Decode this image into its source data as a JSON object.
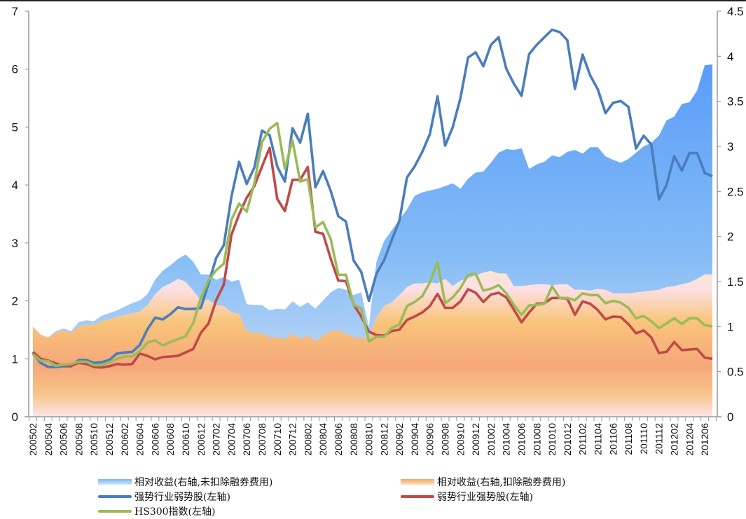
{
  "chart_data": {
    "type": "line",
    "title": "",
    "xlabel": "",
    "ylabel_left": "",
    "ylabel_right": "",
    "left_axis": {
      "range": [
        0,
        7
      ],
      "ticks": [
        "0",
        "1",
        "2",
        "3",
        "4",
        "5",
        "6",
        "7"
      ]
    },
    "right_axis": {
      "range": [
        0,
        4.5
      ],
      "ticks": [
        "0",
        "0.5",
        "1",
        "1.5",
        "2",
        "2.5",
        "3",
        "3.5",
        "4",
        "4.5"
      ]
    },
    "grid": false,
    "legend_position": "bottom",
    "x": [
      "200502",
      "200503",
      "200504",
      "200505",
      "200506",
      "200507",
      "200508",
      "200509",
      "200510",
      "200511",
      "200512",
      "200601",
      "200602",
      "200603",
      "200604",
      "200605",
      "200606",
      "200607",
      "200608",
      "200609",
      "200610",
      "200611",
      "200612",
      "200701",
      "200702",
      "200703",
      "200704",
      "200705",
      "200706",
      "200707",
      "200708",
      "200709",
      "200710",
      "200711",
      "200712",
      "200801",
      "200802",
      "200803",
      "200804",
      "200805",
      "200806",
      "200807",
      "200808",
      "200809",
      "200810",
      "200811",
      "200812",
      "200901",
      "200902",
      "200903",
      "200904",
      "200905",
      "200906",
      "200907",
      "200908",
      "200909",
      "200910",
      "200911",
      "200912",
      "201001",
      "201002",
      "201003",
      "201004",
      "201005",
      "201006",
      "201007",
      "201008",
      "201009",
      "201010",
      "201011",
      "201012",
      "201101",
      "201102",
      "201103",
      "201104",
      "201105",
      "201106",
      "201107",
      "201108",
      "201109",
      "201110",
      "201111",
      "201112",
      "201201",
      "201202",
      "201203",
      "201204",
      "201205",
      "201206",
      "201207"
    ],
    "x_tick_labels": [
      "200502",
      "200504",
      "200506",
      "200508",
      "200510",
      "200512",
      "200602",
      "200604",
      "200606",
      "200608",
      "200610",
      "200612",
      "200702",
      "200704",
      "200706",
      "200708",
      "200710",
      "200712",
      "200802",
      "200804",
      "200806",
      "200808",
      "200810",
      "200812",
      "200902",
      "200904",
      "200906",
      "200908",
      "200910",
      "200912",
      "201002",
      "201004",
      "201006",
      "201008",
      "201010",
      "201012",
      "201102",
      "201104",
      "201106",
      "201108",
      "201110",
      "201112",
      "201202",
      "201204",
      "201206"
    ],
    "series": [
      {
        "name": "相对收益(右轴,未扣除融券费用)",
        "kind": "area",
        "axis": "right",
        "color": "#7fb6f5",
        "values": [
          1.0,
          0.91,
          0.88,
          0.95,
          0.98,
          0.95,
          1.05,
          1.07,
          1.06,
          1.12,
          1.15,
          1.18,
          1.22,
          1.26,
          1.29,
          1.36,
          1.52,
          1.62,
          1.68,
          1.75,
          1.8,
          1.72,
          1.58,
          1.58,
          1.52,
          1.55,
          1.5,
          1.52,
          1.25,
          1.24,
          1.24,
          1.18,
          1.2,
          1.19,
          1.28,
          1.22,
          1.27,
          1.2,
          1.29,
          1.38,
          1.43,
          1.41,
          1.35,
          1.38,
          1.0,
          1.72,
          1.95,
          2.07,
          2.19,
          2.3,
          2.45,
          2.49,
          2.51,
          2.53,
          2.56,
          2.59,
          2.53,
          2.64,
          2.71,
          2.72,
          2.82,
          2.93,
          2.97,
          2.96,
          2.98,
          2.75,
          2.8,
          2.83,
          2.9,
          2.88,
          2.94,
          2.96,
          2.92,
          2.99,
          2.99,
          2.89,
          2.85,
          2.82,
          2.86,
          2.93,
          3.0,
          3.04,
          3.12,
          3.29,
          3.33,
          3.47,
          3.49,
          3.62,
          3.9,
          3.91
        ]
      },
      {
        "name": "相对收益(右轴,扣除融券费用)",
        "kind": "area",
        "axis": "right",
        "color": "#f6a860",
        "values": [
          1.0,
          0.91,
          0.88,
          0.93,
          0.96,
          0.93,
          1.0,
          1.02,
          1.02,
          1.06,
          1.08,
          1.11,
          1.13,
          1.15,
          1.17,
          1.24,
          1.36,
          1.44,
          1.48,
          1.53,
          1.5,
          1.4,
          1.29,
          1.3,
          1.24,
          1.23,
          1.16,
          1.14,
          0.95,
          0.93,
          0.93,
          0.88,
          0.88,
          0.86,
          0.92,
          0.87,
          0.9,
          0.84,
          0.9,
          0.95,
          0.96,
          0.92,
          0.88,
          0.88,
          0.86,
          1.1,
          1.23,
          1.27,
          1.35,
          1.44,
          1.48,
          1.48,
          1.49,
          1.48,
          1.53,
          1.45,
          1.51,
          1.54,
          1.57,
          1.6,
          1.62,
          1.59,
          1.59,
          1.45,
          1.45,
          1.46,
          1.47,
          1.47,
          1.46,
          1.47,
          1.47,
          1.41,
          1.41,
          1.4,
          1.42,
          1.41,
          1.37,
          1.37,
          1.37,
          1.38,
          1.39,
          1.4,
          1.41,
          1.44,
          1.45,
          1.47,
          1.49,
          1.53,
          1.58,
          1.58
        ]
      },
      {
        "name": "强势行业弱势股(左轴)",
        "kind": "line",
        "axis": "left",
        "color": "#4a7ebb",
        "values": [
          1.1,
          0.93,
          0.86,
          0.86,
          0.87,
          0.87,
          0.98,
          0.98,
          0.93,
          0.94,
          0.98,
          1.09,
          1.11,
          1.12,
          1.24,
          1.51,
          1.71,
          1.68,
          1.77,
          1.89,
          1.86,
          1.86,
          1.88,
          2.3,
          2.74,
          2.96,
          3.8,
          4.4,
          4.02,
          4.3,
          4.94,
          4.86,
          4.32,
          4.06,
          4.98,
          4.73,
          5.23,
          3.96,
          4.24,
          3.9,
          3.46,
          3.37,
          2.7,
          2.5,
          2.0,
          2.47,
          2.7,
          3.05,
          3.38,
          4.13,
          4.32,
          4.57,
          4.88,
          5.53,
          4.68,
          5.0,
          5.5,
          6.2,
          6.29,
          6.05,
          6.42,
          6.55,
          6.01,
          5.75,
          5.54,
          6.26,
          6.42,
          6.55,
          6.68,
          6.64,
          6.5,
          5.66,
          6.25,
          5.89,
          5.65,
          5.24,
          5.42,
          5.45,
          5.35,
          4.63,
          4.85,
          4.7,
          3.75,
          4.0,
          4.5,
          4.25,
          4.55,
          4.55,
          4.21,
          4.15
        ]
      },
      {
        "name": "弱势行业强势股(左轴)",
        "kind": "line",
        "axis": "left",
        "color": "#be4b48",
        "values": [
          1.12,
          1.0,
          0.97,
          0.92,
          0.88,
          0.88,
          0.93,
          0.91,
          0.86,
          0.85,
          0.87,
          0.91,
          0.9,
          0.91,
          1.09,
          1.05,
          0.99,
          1.03,
          1.04,
          1.05,
          1.11,
          1.17,
          1.45,
          1.61,
          2.01,
          2.28,
          3.14,
          3.49,
          3.78,
          3.98,
          4.32,
          4.64,
          3.76,
          3.55,
          4.09,
          4.09,
          4.31,
          3.19,
          3.16,
          2.73,
          2.35,
          2.34,
          1.94,
          1.73,
          1.47,
          1.41,
          1.4,
          1.48,
          1.5,
          1.67,
          1.73,
          1.8,
          1.91,
          2.12,
          1.88,
          1.88,
          1.99,
          2.2,
          2.14,
          1.98,
          2.11,
          2.14,
          2.06,
          1.85,
          1.63,
          1.8,
          1.95,
          1.96,
          2.05,
          2.05,
          2.04,
          1.76,
          1.99,
          1.95,
          1.84,
          1.68,
          1.73,
          1.72,
          1.6,
          1.44,
          1.49,
          1.37,
          1.1,
          1.12,
          1.29,
          1.15,
          1.16,
          1.17,
          1.02,
          1.0
        ]
      },
      {
        "name": "HS300指数(左轴)",
        "kind": "line",
        "axis": "left",
        "color": "#9bbb59",
        "values": [
          1.08,
          0.97,
          0.96,
          0.88,
          0.9,
          0.91,
          0.95,
          0.95,
          0.89,
          0.89,
          0.94,
          1.0,
          1.04,
          1.04,
          1.13,
          1.28,
          1.32,
          1.23,
          1.29,
          1.34,
          1.39,
          1.62,
          2.05,
          2.35,
          2.53,
          2.64,
          3.4,
          3.68,
          3.54,
          4.03,
          4.74,
          4.97,
          5.07,
          4.28,
          4.77,
          4.06,
          4.1,
          3.27,
          3.36,
          3.07,
          2.45,
          2.45,
          1.93,
          1.87,
          1.3,
          1.38,
          1.38,
          1.53,
          1.59,
          1.91,
          1.98,
          2.08,
          2.32,
          2.67,
          1.96,
          2.06,
          2.22,
          2.45,
          2.47,
          2.18,
          2.21,
          2.27,
          2.13,
          1.93,
          1.76,
          1.92,
          1.93,
          1.95,
          2.25,
          2.05,
          2.05,
          2.01,
          2.13,
          2.1,
          2.1,
          1.96,
          2.0,
          1.97,
          1.88,
          1.7,
          1.74,
          1.65,
          1.53,
          1.61,
          1.7,
          1.6,
          1.7,
          1.7,
          1.58,
          1.56
        ]
      }
    ]
  },
  "legend": {
    "items": [
      {
        "label": "相对收益(右轴,未扣除融券费用)",
        "kind": "area-blue"
      },
      {
        "label": "相对收益(右轴,扣除融券费用)",
        "kind": "area-orange"
      },
      {
        "label": "强势行业弱势股(左轴)",
        "kind": "line",
        "color": "#4a7ebb"
      },
      {
        "label": "弱势行业强势股(左轴)",
        "kind": "line",
        "color": "#be4b48"
      },
      {
        "label": "HS300指数(左轴)",
        "kind": "line",
        "color": "#9bbb59"
      }
    ]
  }
}
